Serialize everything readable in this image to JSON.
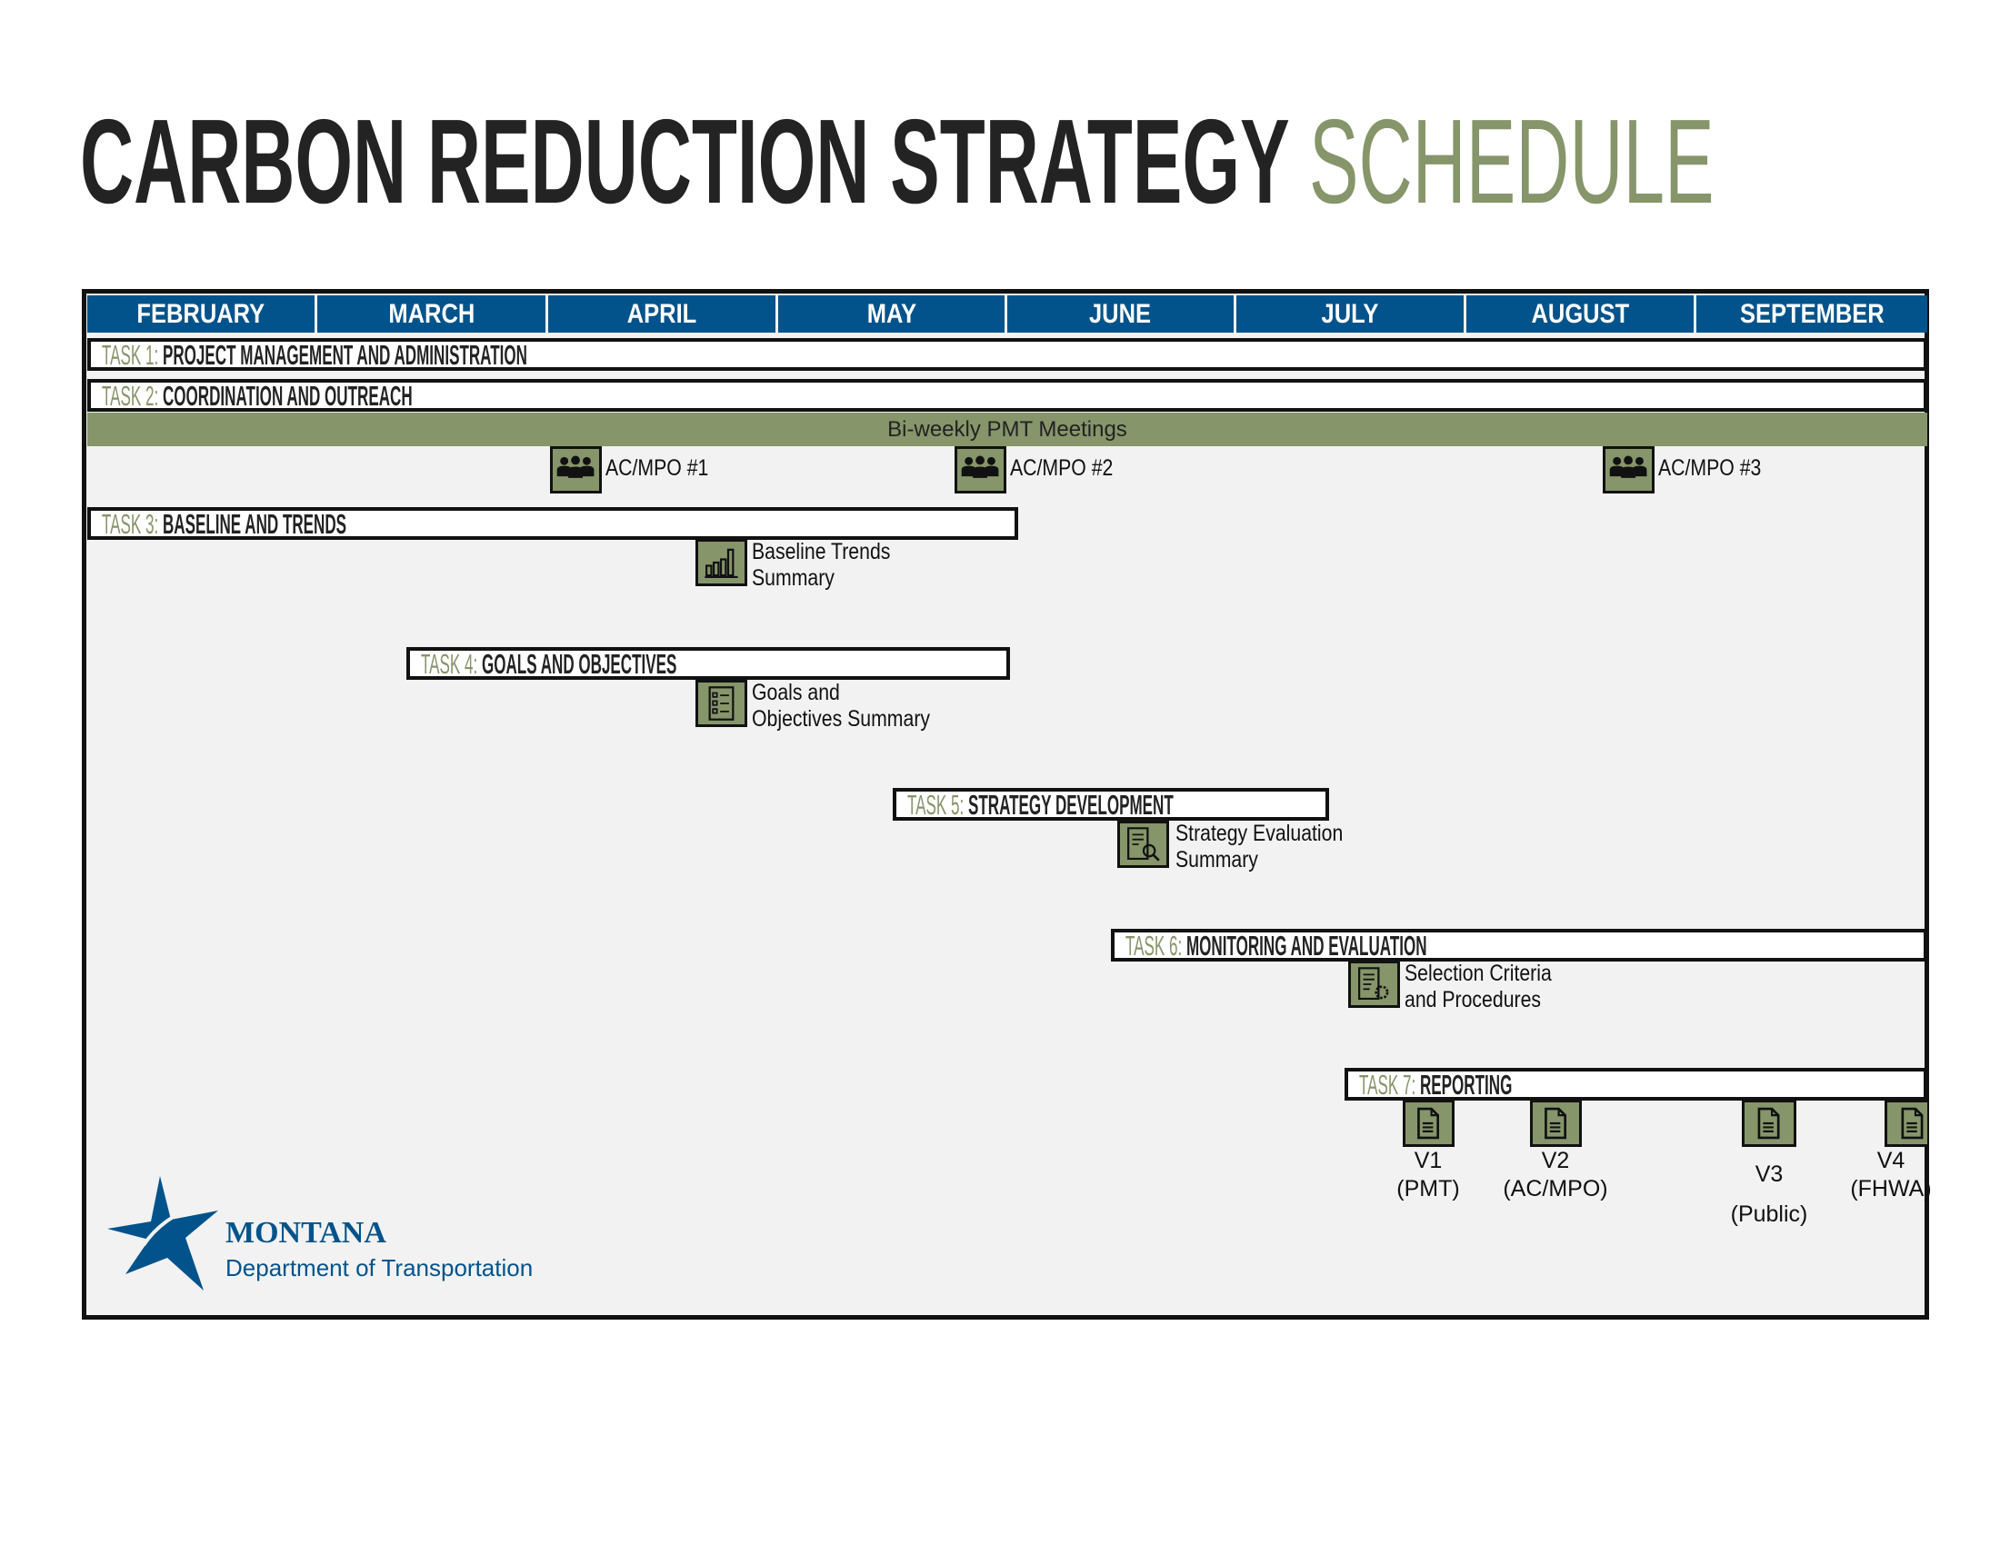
{
  "title": {
    "part1": "CARBON REDUCTION STRATEGY",
    "part2": "SCHEDULE"
  },
  "colors": {
    "header_blue": "#02538b",
    "accent_green": "#86956a",
    "background": "#f2f2f2",
    "text_dark": "#232323"
  },
  "months": [
    "FEBRUARY",
    "MARCH",
    "APRIL",
    "MAY",
    "JUNE",
    "JULY",
    "AUGUST",
    "SEPTEMBER"
  ],
  "tasks": [
    {
      "num": "TASK 1:",
      "name": "PROJECT MANAGEMENT AND ADMINISTRATION"
    },
    {
      "num": "TASK 2:",
      "name": "COORDINATION AND OUTREACH"
    },
    {
      "num": "TASK 3:",
      "name": "BASELINE AND TRENDS"
    },
    {
      "num": "TASK 4:",
      "name": "GOALS AND OBJECTIVES"
    },
    {
      "num": "TASK 5:",
      "name": "STRATEGY DEVELOPMENT"
    },
    {
      "num": "TASK 6:",
      "name": "MONITORING AND EVALUATION"
    },
    {
      "num": "TASK 7:",
      "name": "REPORTING"
    }
  ],
  "pmt_meetings": "Bi-weekly PMT Meetings",
  "meetings": [
    {
      "label": "AC/MPO #1",
      "icon": "group-icon"
    },
    {
      "label": "AC/MPO #2",
      "icon": "group-icon"
    },
    {
      "label": "AC/MPO #3",
      "icon": "group-icon"
    }
  ],
  "deliverables": [
    {
      "line1": "Baseline Trends",
      "line2": "Summary",
      "icon": "bar-chart-icon"
    },
    {
      "line1": "Goals and",
      "line2": "Objectives Summary",
      "icon": "checklist-icon"
    },
    {
      "line1": "Strategy Evaluation",
      "line2": "Summary",
      "icon": "document-magnifier-icon"
    },
    {
      "line1": "Selection Criteria",
      "line2": "and Procedures",
      "icon": "document-gear-icon"
    }
  ],
  "reports": [
    {
      "version": "V1",
      "audience": "(PMT)",
      "icon": "document-icon"
    },
    {
      "version": "V2",
      "audience": "(AC/MPO)",
      "icon": "document-icon"
    },
    {
      "version": "V3",
      "audience": "(Public)",
      "icon": "document-icon"
    },
    {
      "version": "V4",
      "audience": "(FHWA)",
      "icon": "document-icon"
    }
  ],
  "logo": {
    "name": "MONTANA",
    "dept": "Department of Transportation"
  }
}
